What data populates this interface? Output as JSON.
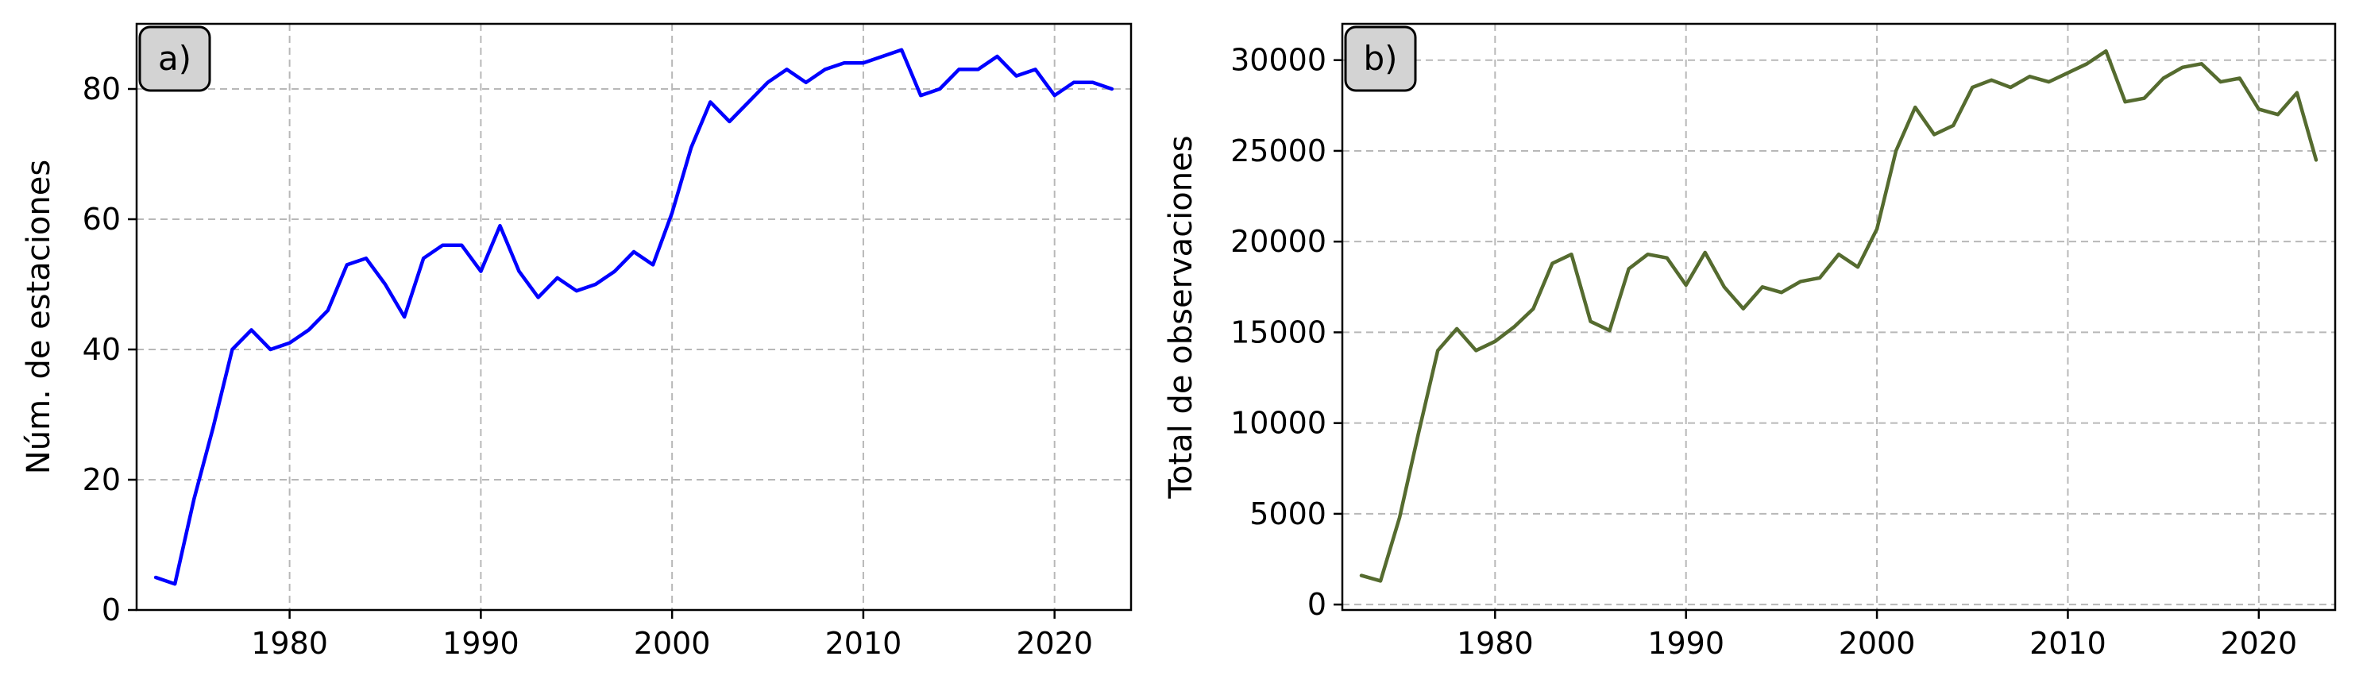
{
  "chart_data": [
    {
      "type": "line",
      "panel_label": "a)",
      "xlabel": "",
      "ylabel": "Núm. de estaciones",
      "xlim": [
        1972,
        2024
      ],
      "ylim": [
        0,
        90
      ],
      "xticks": [
        1980,
        1990,
        2000,
        2010,
        2020
      ],
      "yticks": [
        0,
        20,
        40,
        60,
        80
      ],
      "grid": true,
      "line_color": "#0000ff",
      "x": [
        1973,
        1974,
        1975,
        1976,
        1977,
        1978,
        1979,
        1980,
        1981,
        1982,
        1983,
        1984,
        1985,
        1986,
        1987,
        1988,
        1989,
        1990,
        1991,
        1992,
        1993,
        1994,
        1995,
        1996,
        1997,
        1998,
        1999,
        2000,
        2001,
        2002,
        2003,
        2004,
        2005,
        2006,
        2007,
        2008,
        2009,
        2010,
        2011,
        2012,
        2013,
        2014,
        2015,
        2016,
        2017,
        2018,
        2019,
        2020,
        2021,
        2022,
        2023
      ],
      "values": [
        5,
        4,
        17,
        28,
        40,
        43,
        40,
        41,
        43,
        46,
        53,
        54,
        50,
        45,
        54,
        56,
        56,
        52,
        59,
        52,
        48,
        51,
        49,
        50,
        52,
        55,
        53,
        61,
        71,
        78,
        75,
        78,
        81,
        83,
        81,
        83,
        84,
        84,
        85,
        86,
        79,
        80,
        83,
        83,
        85,
        82,
        83,
        79,
        81,
        81,
        80
      ]
    },
    {
      "type": "line",
      "panel_label": "b)",
      "xlabel": "",
      "ylabel": "Total de observaciones",
      "xlim": [
        1972,
        2024
      ],
      "ylim": [
        -300,
        32000
      ],
      "xticks": [
        1980,
        1990,
        2000,
        2010,
        2020
      ],
      "yticks": [
        0,
        5000,
        10000,
        15000,
        20000,
        25000,
        30000
      ],
      "grid": true,
      "line_color": "#556b2f",
      "x": [
        1973,
        1974,
        1975,
        1976,
        1977,
        1978,
        1979,
        1980,
        1981,
        1982,
        1983,
        1984,
        1985,
        1986,
        1987,
        1988,
        1989,
        1990,
        1991,
        1992,
        1993,
        1994,
        1995,
        1996,
        1997,
        1998,
        1999,
        2000,
        2001,
        2002,
        2003,
        2004,
        2005,
        2006,
        2007,
        2008,
        2009,
        2010,
        2011,
        2012,
        2013,
        2014,
        2015,
        2016,
        2017,
        2018,
        2019,
        2020,
        2021,
        2022,
        2023
      ],
      "values": [
        1600,
        1300,
        4800,
        9500,
        14000,
        15200,
        14000,
        14500,
        15300,
        16300,
        18800,
        19300,
        15600,
        15100,
        18500,
        19300,
        19100,
        17600,
        19400,
        17500,
        16300,
        17500,
        17200,
        17800,
        18000,
        19300,
        18600,
        20700,
        25000,
        27400,
        25900,
        26400,
        28500,
        28900,
        28500,
        29100,
        28800,
        29300,
        29800,
        30500,
        27700,
        27900,
        29000,
        29600,
        29800,
        28800,
        29000,
        27300,
        27000,
        28200,
        24500
      ]
    }
  ]
}
